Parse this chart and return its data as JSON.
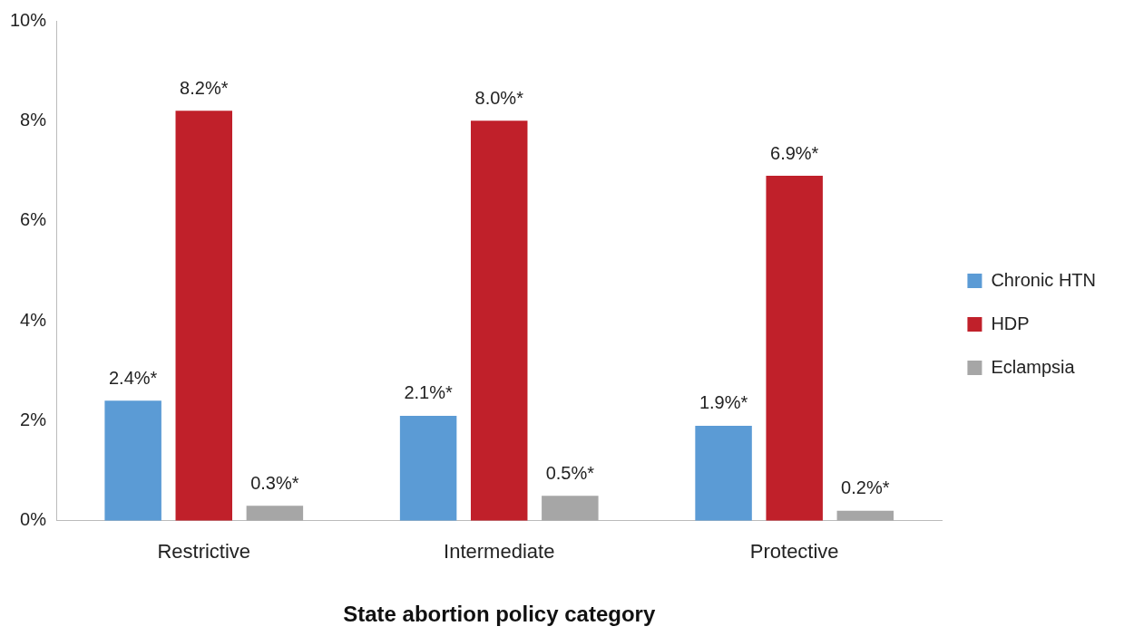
{
  "chart_data": {
    "type": "bar",
    "xlabel": "State abortion policy category",
    "categories": [
      "Restrictive",
      "Intermediate",
      "Protective"
    ],
    "series": [
      {
        "name": "Chronic HTN",
        "color": "#5b9bd5",
        "values": [
          2.4,
          2.1,
          1.9
        ],
        "value_labels": [
          "2.4%*",
          "2.1%*",
          "1.9%*"
        ]
      },
      {
        "name": "HDP",
        "color": "#c0202a",
        "values": [
          8.2,
          8.0,
          6.9
        ],
        "value_labels": [
          "8.2%*",
          "8.0%*",
          "6.9%*"
        ]
      },
      {
        "name": "Eclampsia",
        "color": "#a6a6a6",
        "values": [
          0.3,
          0.5,
          0.2
        ],
        "value_labels": [
          "0.3%*",
          "0.5%*",
          "0.2%*"
        ]
      }
    ],
    "ylim": [
      0,
      10
    ],
    "yticks": [
      {
        "value": 0,
        "label": "0%"
      },
      {
        "value": 2,
        "label": "2%"
      },
      {
        "value": 4,
        "label": "4%"
      },
      {
        "value": 6,
        "label": "6%"
      },
      {
        "value": 8,
        "label": "8%"
      },
      {
        "value": 10,
        "label": "10%"
      }
    ],
    "grid": false,
    "legend": "right"
  }
}
